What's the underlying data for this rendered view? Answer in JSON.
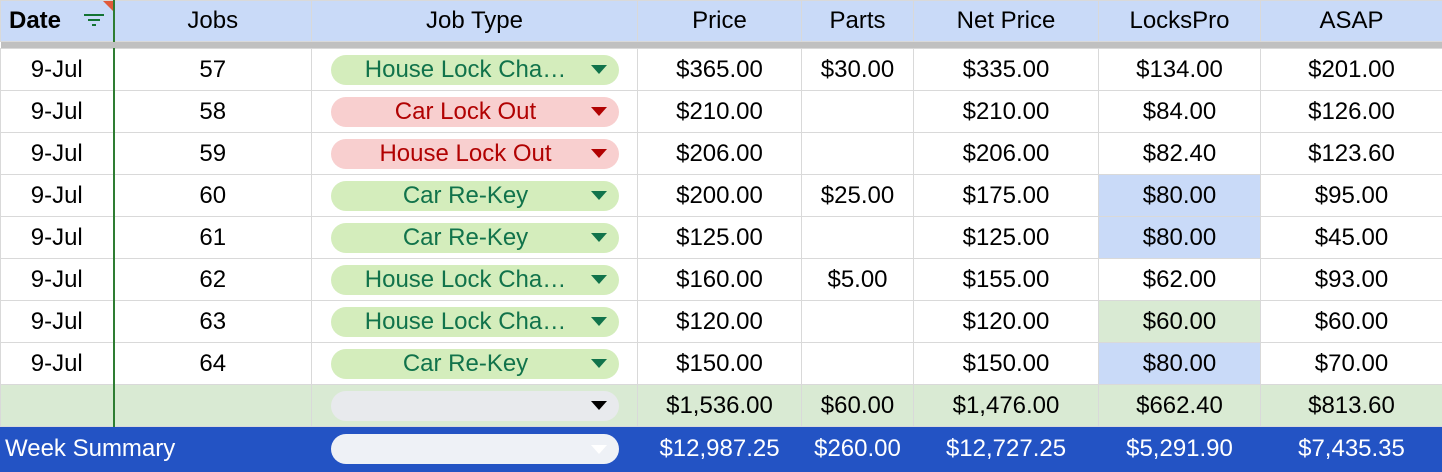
{
  "headers": {
    "date": "Date",
    "jobs": "Jobs",
    "job_type": "Job Type",
    "price": "Price",
    "parts": "Parts",
    "net_price": "Net Price",
    "lockspro": "LocksPro",
    "asap": "ASAP"
  },
  "icons": {
    "filter": "filter-icon",
    "dropdown": "chevron-down-icon"
  },
  "colors": {
    "header_bg": "#c9daf8",
    "chip_green_bg": "#d4edbc",
    "chip_red_bg": "#f8cfcf",
    "total_row_bg": "#d9ead3",
    "summary_row_bg": "#2353c4"
  },
  "rows": [
    {
      "date": "9-Jul",
      "jobs": "57",
      "job_type": "House Lock Cha…",
      "chip": "green",
      "price": "$365.00",
      "parts": "$30.00",
      "net_price": "$335.00",
      "lockspro": "$134.00",
      "lockspro_hl": "",
      "asap": "$201.00"
    },
    {
      "date": "9-Jul",
      "jobs": "58",
      "job_type": "Car Lock Out",
      "chip": "red",
      "price": "$210.00",
      "parts": "",
      "net_price": "$210.00",
      "lockspro": "$84.00",
      "lockspro_hl": "",
      "asap": "$126.00"
    },
    {
      "date": "9-Jul",
      "jobs": "59",
      "job_type": "House Lock Out",
      "chip": "red",
      "price": "$206.00",
      "parts": "",
      "net_price": "$206.00",
      "lockspro": "$82.40",
      "lockspro_hl": "",
      "asap": "$123.60"
    },
    {
      "date": "9-Jul",
      "jobs": "60",
      "job_type": "Car Re-Key",
      "chip": "green",
      "price": "$200.00",
      "parts": "$25.00",
      "net_price": "$175.00",
      "lockspro": "$80.00",
      "lockspro_hl": "blue",
      "asap": "$95.00"
    },
    {
      "date": "9-Jul",
      "jobs": "61",
      "job_type": "Car Re-Key",
      "chip": "green",
      "price": "$125.00",
      "parts": "",
      "net_price": "$125.00",
      "lockspro": "$80.00",
      "lockspro_hl": "blue",
      "asap": "$45.00"
    },
    {
      "date": "9-Jul",
      "jobs": "62",
      "job_type": "House Lock Cha…",
      "chip": "green",
      "price": "$160.00",
      "parts": "$5.00",
      "net_price": "$155.00",
      "lockspro": "$62.00",
      "lockspro_hl": "",
      "asap": "$93.00"
    },
    {
      "date": "9-Jul",
      "jobs": "63",
      "job_type": "House Lock Cha…",
      "chip": "green",
      "price": "$120.00",
      "parts": "",
      "net_price": "$120.00",
      "lockspro": "$60.00",
      "lockspro_hl": "green",
      "asap": "$60.00"
    },
    {
      "date": "9-Jul",
      "jobs": "64",
      "job_type": "Car Re-Key",
      "chip": "green",
      "price": "$150.00",
      "parts": "",
      "net_price": "$150.00",
      "lockspro": "$80.00",
      "lockspro_hl": "blue",
      "asap": "$70.00"
    }
  ],
  "totals": {
    "job_type": "",
    "price": "$1,536.00",
    "parts": "$60.00",
    "net_price": "$1,476.00",
    "lockspro": "$662.40",
    "asap": "$813.60"
  },
  "summary": {
    "label": "Week Summary",
    "job_type": "",
    "price": "$12,987.25",
    "parts": "$260.00",
    "net_price": "$12,727.25",
    "lockspro": "$5,291.90",
    "asap": "$7,435.35"
  }
}
